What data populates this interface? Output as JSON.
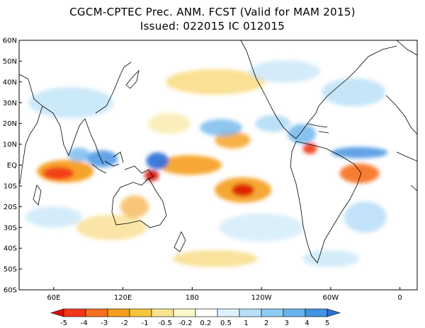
{
  "title": {
    "line1": "CGCM-CPTEC Prec. ANM. FCST  (Valid for MAM 2015)",
    "line2": "Issued:  022015 IC 012015"
  },
  "map": {
    "lat_labels": [
      "60N",
      "50N",
      "40N",
      "30N",
      "20N",
      "10N",
      "EQ",
      "10S",
      "20S",
      "30S",
      "40S",
      "50S",
      "60S"
    ],
    "lon_labels": [
      "60E",
      "120E",
      "180",
      "120W",
      "60W",
      "0"
    ]
  },
  "colorbar": {
    "labels": [
      "-5",
      "-4",
      "-3",
      "-2",
      "-1",
      "-0.5",
      "-0.2",
      "0.2",
      "0.5",
      "1",
      "2",
      "3",
      "4",
      "5"
    ],
    "colors": [
      "#d90f00",
      "#f2361a",
      "#f5701e",
      "#f59e1d",
      "#f5c63a",
      "#f7e58f",
      "#fbf8c9",
      "#ffffff",
      "#dff1fb",
      "#b7e0f7",
      "#8ecbf2",
      "#68b3ea",
      "#4493e2",
      "#2a6ed8"
    ]
  },
  "anomalies": {
    "dry": [
      {
        "label": "central-pacific",
        "lon": 180,
        "lat": -2
      },
      {
        "label": "south-pacific",
        "lon": -136,
        "lat": -14
      },
      {
        "label": "indian-ocean",
        "lon": 68,
        "lat": -3
      },
      {
        "label": "ne-brazil",
        "lon": -35,
        "lat": -6
      },
      {
        "label": "new-guinea",
        "lon": 145,
        "lat": -5
      }
    ],
    "wet": [
      {
        "label": "maritime-continent",
        "lon": 150,
        "lat": 2
      },
      {
        "label": "east-indian-ocean",
        "lon": 100,
        "lat": 2
      },
      {
        "label": "hawaii",
        "lon": -155,
        "lat": 20
      },
      {
        "label": "atlantic-itcz",
        "lon": -35,
        "lat": 6
      },
      {
        "label": "central-america",
        "lon": -85,
        "lat": 15
      }
    ]
  }
}
